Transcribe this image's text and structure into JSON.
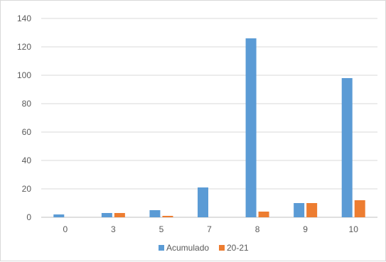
{
  "chart_data": {
    "type": "bar",
    "categories": [
      "0",
      "3",
      "5",
      "7",
      "8",
      "9",
      "10"
    ],
    "series": [
      {
        "name": "Acumulado",
        "values": [
          2,
          3,
          5,
          21,
          126,
          10,
          98
        ],
        "color": "#5b9bd5"
      },
      {
        "name": "20-21",
        "values": [
          0,
          3,
          1,
          0,
          4,
          10,
          12
        ],
        "color": "#ed7d31"
      }
    ],
    "y_ticks": [
      "0",
      "20",
      "40",
      "60",
      "80",
      "100",
      "120",
      "140"
    ],
    "ylim": [
      0,
      140
    ],
    "grid": true,
    "legend_position": "bottom"
  }
}
